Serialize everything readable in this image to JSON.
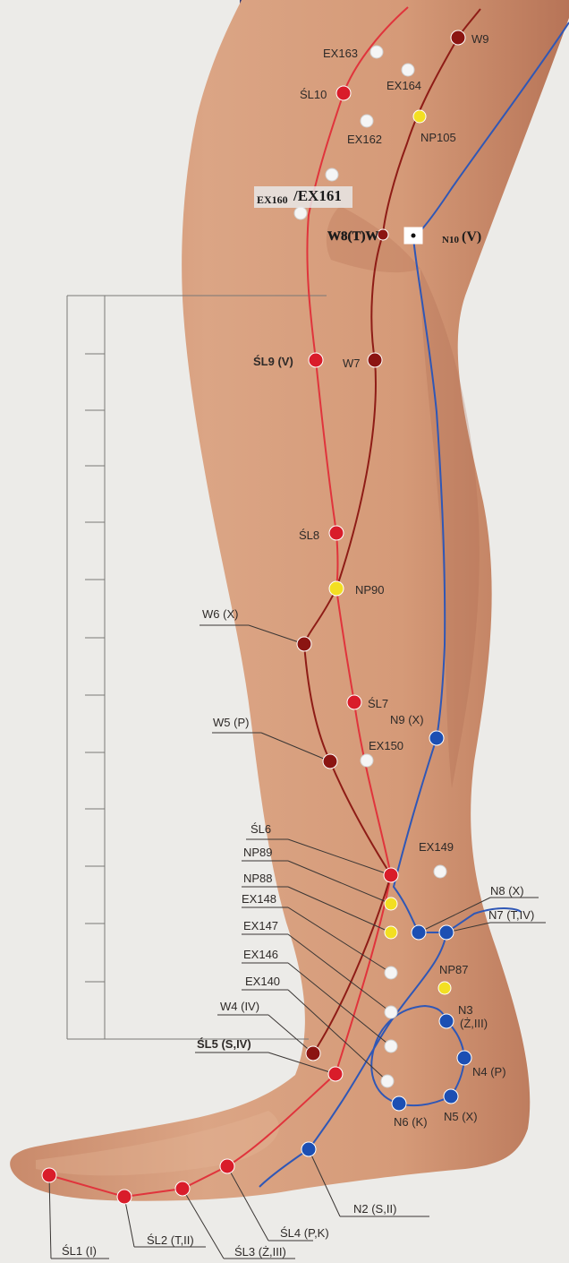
{
  "points": {
    "ex163": "EX163",
    "w9": "W9",
    "ex164": "EX164",
    "sl10": "ŚL10",
    "np105": "NP105",
    "ex162": "EX162",
    "ex160": "EX160",
    "ex161": "/EX161",
    "w8": "W8(T)W",
    "n10": "N10",
    "n10_roman": "(V)",
    "sl9": "ŚL9 (V)",
    "w7": "W7",
    "sl8": "ŚL8",
    "np90": "NP90",
    "w6": "W6 (X)",
    "sl7": "ŚL7",
    "w5": "W5 (P)",
    "n9": "N9 (X)",
    "ex150": "EX150",
    "sl6": "ŚL6",
    "ex149": "EX149",
    "np89": "NP89",
    "np88": "NP88",
    "n8": "N8 (X)",
    "ex148": "EX148",
    "n7": "N7 (T,IV)",
    "ex147": "EX147",
    "np87": "NP87",
    "ex146": "EX146",
    "n3a": "N3",
    "n3b": "(Ż,III)",
    "ex140": "EX140",
    "w4": "W4 (IV)",
    "n4": "N4 (P)",
    "sl5": "ŚL5 (S,IV)",
    "n6": "N6 (K)",
    "n5": "N5 (X)",
    "n2": "N2 (S,II)",
    "sl4": "ŚL4 (P,K)",
    "sl1": "ŚL1 (I)",
    "sl2": "ŚL2 (T,II)",
    "sl3": "ŚL3 (Ż,III)"
  },
  "colors": {
    "meridian_red": "#e0343c",
    "meridian_darkred": "#8e1c16",
    "meridian_blue": "#2f57b6",
    "point_red": "#d91c2a",
    "point_darkred": "#8b1512",
    "point_blue": "#1c4fb3",
    "point_yellow": "#f3df22",
    "point_white": "#f5f5f5"
  }
}
